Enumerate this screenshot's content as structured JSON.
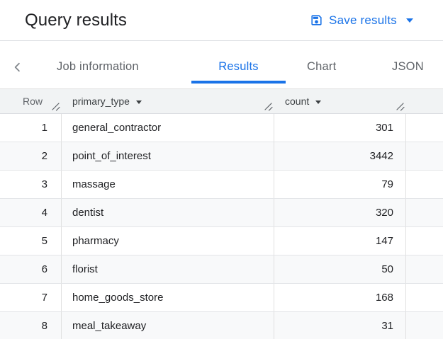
{
  "titlebar": {
    "title": "Query results",
    "save_button": {
      "label": "Save results"
    }
  },
  "tabbar": {
    "tabs": [
      {
        "label": "Job information",
        "active": false
      },
      {
        "label": "Results",
        "active": true
      },
      {
        "label": "Chart",
        "active": false
      },
      {
        "label": "JSON",
        "active": false
      }
    ]
  },
  "table": {
    "columns": [
      {
        "label": "Row",
        "sortable": false
      },
      {
        "label": "primary_type",
        "sortable": true
      },
      {
        "label": "count",
        "sortable": true
      }
    ],
    "rows": [
      {
        "row": "1",
        "primary_type": "general_contractor",
        "count": "301"
      },
      {
        "row": "2",
        "primary_type": "point_of_interest",
        "count": "3442"
      },
      {
        "row": "3",
        "primary_type": "massage",
        "count": "79"
      },
      {
        "row": "4",
        "primary_type": "dentist",
        "count": "320"
      },
      {
        "row": "5",
        "primary_type": "pharmacy",
        "count": "147"
      },
      {
        "row": "6",
        "primary_type": "florist",
        "count": "50"
      },
      {
        "row": "7",
        "primary_type": "home_goods_store",
        "count": "168"
      },
      {
        "row": "8",
        "primary_type": "meal_takeaway",
        "count": "31"
      }
    ]
  },
  "colors": {
    "accent_blue": "#1a73e8",
    "header_bg": "#f1f3f4",
    "stripe_bg": "#f8f9fa",
    "border": "#e0e0e0",
    "text_primary": "#202124",
    "text_secondary": "#5f6368"
  }
}
